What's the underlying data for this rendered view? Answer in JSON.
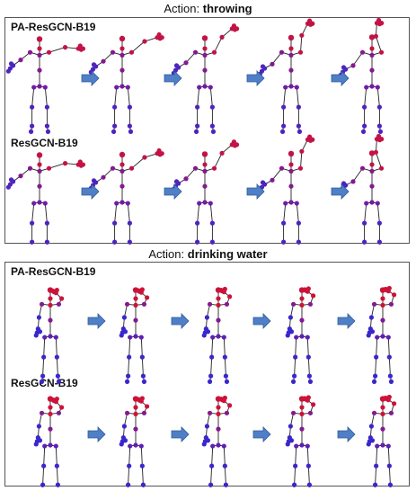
{
  "figure": {
    "panels": [
      {
        "action_prefix": "Action: ",
        "action_name": "throwing",
        "rows": [
          {
            "label": "PA-ResGCN-B19",
            "poses": [
              "throw",
              "throw",
              "throw",
              "throw",
              "throw"
            ],
            "heat": [
              "arm",
              "arm",
              "arm",
              "arm",
              "arm"
            ]
          },
          {
            "label": "ResGCN-B19",
            "poses": [
              "throw",
              "throw",
              "throw",
              "throw",
              "throw"
            ],
            "heat": [
              "arm",
              "arm",
              "arm",
              "arm",
              "arm"
            ]
          }
        ]
      },
      {
        "action_prefix": "Action: ",
        "action_name": "drinking water",
        "rows": [
          {
            "label": "PA-ResGCN-B19",
            "poses": [
              "drink",
              "drink",
              "drink",
              "drink",
              "drink"
            ],
            "heat": [
              "head",
              "head",
              "head",
              "head",
              "head"
            ]
          },
          {
            "label": "ResGCN-B19",
            "poses": [
              "drink",
              "drink",
              "drink",
              "drink",
              "drink"
            ],
            "heat": [
              "head",
              "head",
              "head",
              "head",
              "head"
            ]
          }
        ]
      }
    ],
    "colors": {
      "low_attention": "#1f2de0",
      "mid_attention": "#7a1a9e",
      "high_attention": "#e21020",
      "bone": "#222222",
      "arrow": "#4f7fc6",
      "arrow_border": "#2f5b9a",
      "border": "#555555"
    }
  }
}
